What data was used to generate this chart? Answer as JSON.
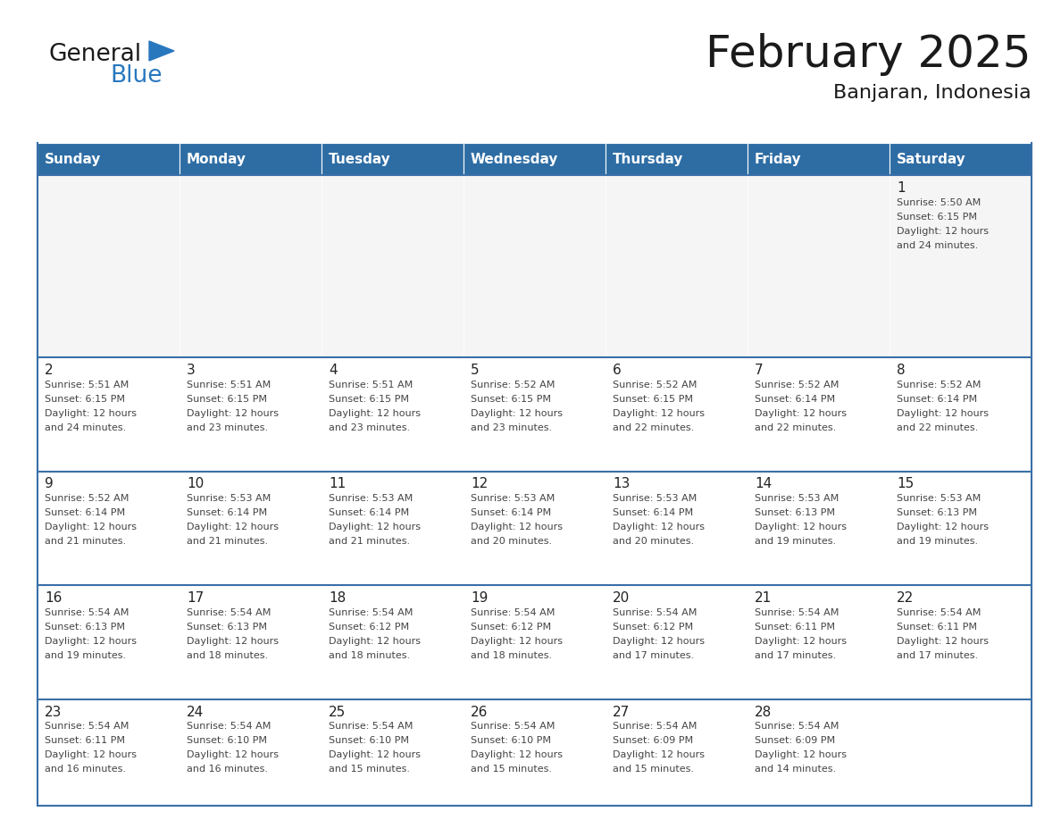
{
  "title": "February 2025",
  "subtitle": "Banjaran, Indonesia",
  "days_of_week": [
    "Sunday",
    "Monday",
    "Tuesday",
    "Wednesday",
    "Thursday",
    "Friday",
    "Saturday"
  ],
  "header_bg": "#2e6da4",
  "header_text_color": "#ffffff",
  "cell_bg": "#ffffff",
  "first_row_bg": "#f5f5f5",
  "border_color": "#2e6da4",
  "row_line_color": "#3a6fa8",
  "text_color": "#444444",
  "day_num_color": "#222222",
  "calendar_data": [
    [
      null,
      null,
      null,
      null,
      null,
      null,
      {
        "day": 1,
        "sunrise": "5:50 AM",
        "sunset": "6:15 PM",
        "daylight": "12 hours",
        "daylight2": "and 24 minutes."
      }
    ],
    [
      {
        "day": 2,
        "sunrise": "5:51 AM",
        "sunset": "6:15 PM",
        "daylight": "12 hours",
        "daylight2": "and 24 minutes."
      },
      {
        "day": 3,
        "sunrise": "5:51 AM",
        "sunset": "6:15 PM",
        "daylight": "12 hours",
        "daylight2": "and 23 minutes."
      },
      {
        "day": 4,
        "sunrise": "5:51 AM",
        "sunset": "6:15 PM",
        "daylight": "12 hours",
        "daylight2": "and 23 minutes."
      },
      {
        "day": 5,
        "sunrise": "5:52 AM",
        "sunset": "6:15 PM",
        "daylight": "12 hours",
        "daylight2": "and 23 minutes."
      },
      {
        "day": 6,
        "sunrise": "5:52 AM",
        "sunset": "6:15 PM",
        "daylight": "12 hours",
        "daylight2": "and 22 minutes."
      },
      {
        "day": 7,
        "sunrise": "5:52 AM",
        "sunset": "6:14 PM",
        "daylight": "12 hours",
        "daylight2": "and 22 minutes."
      },
      {
        "day": 8,
        "sunrise": "5:52 AM",
        "sunset": "6:14 PM",
        "daylight": "12 hours",
        "daylight2": "and 22 minutes."
      }
    ],
    [
      {
        "day": 9,
        "sunrise": "5:52 AM",
        "sunset": "6:14 PM",
        "daylight": "12 hours",
        "daylight2": "and 21 minutes."
      },
      {
        "day": 10,
        "sunrise": "5:53 AM",
        "sunset": "6:14 PM",
        "daylight": "12 hours",
        "daylight2": "and 21 minutes."
      },
      {
        "day": 11,
        "sunrise": "5:53 AM",
        "sunset": "6:14 PM",
        "daylight": "12 hours",
        "daylight2": "and 21 minutes."
      },
      {
        "day": 12,
        "sunrise": "5:53 AM",
        "sunset": "6:14 PM",
        "daylight": "12 hours",
        "daylight2": "and 20 minutes."
      },
      {
        "day": 13,
        "sunrise": "5:53 AM",
        "sunset": "6:14 PM",
        "daylight": "12 hours",
        "daylight2": "and 20 minutes."
      },
      {
        "day": 14,
        "sunrise": "5:53 AM",
        "sunset": "6:13 PM",
        "daylight": "12 hours",
        "daylight2": "and 19 minutes."
      },
      {
        "day": 15,
        "sunrise": "5:53 AM",
        "sunset": "6:13 PM",
        "daylight": "12 hours",
        "daylight2": "and 19 minutes."
      }
    ],
    [
      {
        "day": 16,
        "sunrise": "5:54 AM",
        "sunset": "6:13 PM",
        "daylight": "12 hours",
        "daylight2": "and 19 minutes."
      },
      {
        "day": 17,
        "sunrise": "5:54 AM",
        "sunset": "6:13 PM",
        "daylight": "12 hours",
        "daylight2": "and 18 minutes."
      },
      {
        "day": 18,
        "sunrise": "5:54 AM",
        "sunset": "6:12 PM",
        "daylight": "12 hours",
        "daylight2": "and 18 minutes."
      },
      {
        "day": 19,
        "sunrise": "5:54 AM",
        "sunset": "6:12 PM",
        "daylight": "12 hours",
        "daylight2": "and 18 minutes."
      },
      {
        "day": 20,
        "sunrise": "5:54 AM",
        "sunset": "6:12 PM",
        "daylight": "12 hours",
        "daylight2": "and 17 minutes."
      },
      {
        "day": 21,
        "sunrise": "5:54 AM",
        "sunset": "6:11 PM",
        "daylight": "12 hours",
        "daylight2": "and 17 minutes."
      },
      {
        "day": 22,
        "sunrise": "5:54 AM",
        "sunset": "6:11 PM",
        "daylight": "12 hours",
        "daylight2": "and 17 minutes."
      }
    ],
    [
      {
        "day": 23,
        "sunrise": "5:54 AM",
        "sunset": "6:11 PM",
        "daylight": "12 hours",
        "daylight2": "and 16 minutes."
      },
      {
        "day": 24,
        "sunrise": "5:54 AM",
        "sunset": "6:10 PM",
        "daylight": "12 hours",
        "daylight2": "and 16 minutes."
      },
      {
        "day": 25,
        "sunrise": "5:54 AM",
        "sunset": "6:10 PM",
        "daylight": "12 hours",
        "daylight2": "and 15 minutes."
      },
      {
        "day": 26,
        "sunrise": "5:54 AM",
        "sunset": "6:10 PM",
        "daylight": "12 hours",
        "daylight2": "and 15 minutes."
      },
      {
        "day": 27,
        "sunrise": "5:54 AM",
        "sunset": "6:09 PM",
        "daylight": "12 hours",
        "daylight2": "and 15 minutes."
      },
      {
        "day": 28,
        "sunrise": "5:54 AM",
        "sunset": "6:09 PM",
        "daylight": "12 hours",
        "daylight2": "and 14 minutes."
      },
      null
    ]
  ],
  "logo_text1": "General",
  "logo_text2": "Blue",
  "logo_text1_color": "#1a1a1a",
  "logo_text2_color": "#2878be",
  "logo_triangle_color": "#2878be",
  "title_fontsize": 36,
  "subtitle_fontsize": 16,
  "header_fontsize": 11,
  "daynum_fontsize": 11,
  "cell_fontsize": 8
}
